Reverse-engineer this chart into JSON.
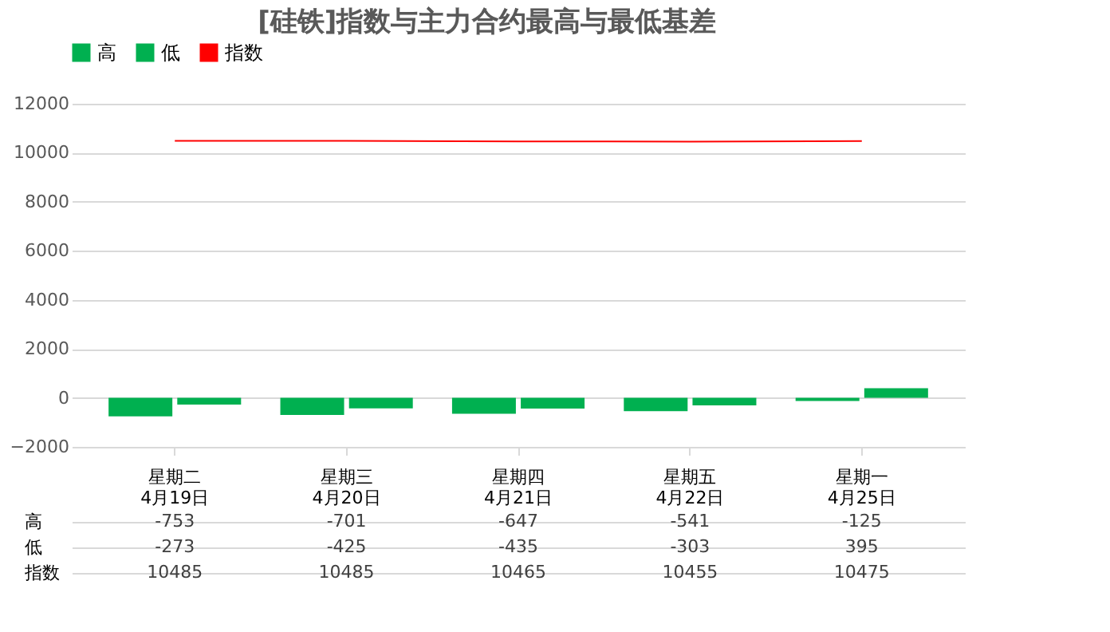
{
  "chart_data": {
    "type": "bar",
    "title": "[硅铁]指数与主力合约最高与最低基差",
    "categories": [
      "星期二\n4月19日",
      "星期三\n4月20日",
      "星期四\n4月21日",
      "星期五\n4月22日",
      "星期一\n4月25日"
    ],
    "series": [
      {
        "name": "高",
        "color": "#00b050",
        "values": [
          -753,
          -701,
          -647,
          -541,
          -125
        ]
      },
      {
        "name": "低",
        "color": "#00b050",
        "values": [
          -273,
          -425,
          -435,
          -303,
          395
        ]
      },
      {
        "name": "指数",
        "type": "line",
        "color": "#ff0000",
        "values": [
          10485,
          10485,
          10465,
          10455,
          10475
        ]
      }
    ],
    "ylim": [
      -2000,
      12000
    ],
    "yticks": [
      -2000,
      0,
      2000,
      4000,
      6000,
      8000,
      10000,
      12000
    ],
    "grid": "y",
    "legend": "top",
    "data_labels": true
  }
}
